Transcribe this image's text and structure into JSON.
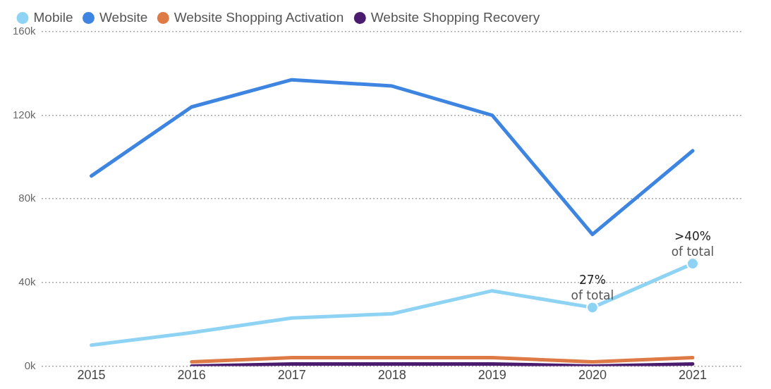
{
  "chart_data": {
    "type": "line",
    "categories": [
      "2015",
      "2016",
      "2017",
      "2018",
      "2019",
      "2020",
      "2021"
    ],
    "series": [
      {
        "name": "Mobile",
        "color": "#8fd3f4",
        "values": [
          10,
          16,
          23,
          25,
          36,
          28,
          49
        ]
      },
      {
        "name": "Website",
        "color": "#3d85e0",
        "values": [
          91,
          124,
          137,
          134,
          120,
          63,
          103
        ]
      },
      {
        "name": "Website Shopping Activation",
        "color": "#de7a45",
        "values": [
          null,
          2,
          4,
          4,
          4,
          2,
          4
        ]
      },
      {
        "name": "Website Shopping Recovery",
        "color": "#4b1c6e",
        "values": [
          null,
          0,
          1,
          1,
          1,
          0,
          1
        ]
      }
    ],
    "ylim": [
      0,
      160
    ],
    "yticks": [
      {
        "value": 0,
        "label": "0k"
      },
      {
        "value": 40,
        "label": "40k"
      },
      {
        "value": 80,
        "label": "80k"
      },
      {
        "value": 120,
        "label": "120k"
      },
      {
        "value": 160,
        "label": "160k"
      }
    ],
    "grid": "y",
    "legend": "top left",
    "marker": "none",
    "line_style": "solid",
    "annotations": [
      {
        "text": "27%\nof total",
        "x": "2020",
        "y": 28
      },
      {
        "text": ">40%\nof total",
        "x": "2021",
        "y": 49
      }
    ]
  }
}
